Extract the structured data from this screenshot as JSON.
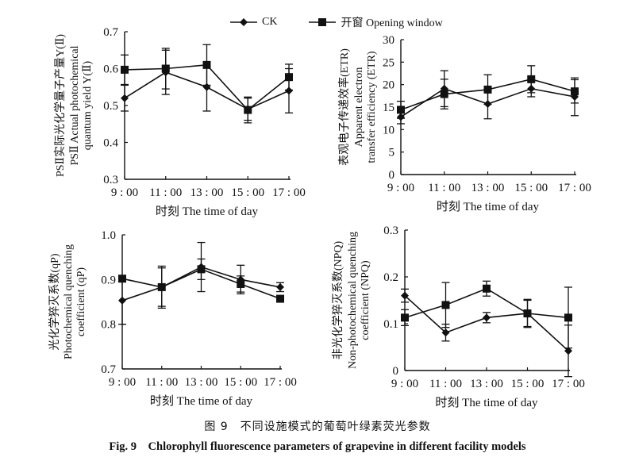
{
  "legend": {
    "ck_label": "CK",
    "open_label": "开窗 Opening window"
  },
  "caption": {
    "cn": "图 9　不同设施模式的葡萄叶绿素荧光参数",
    "en": "Fig. 9　Chlorophyll fluorescence parameters of grapevine in different facility models"
  },
  "chart_data": [
    {
      "id": "yII",
      "type": "line",
      "title": "",
      "xlabel": "时刻  The time of day",
      "ylabel_lines": [
        "PSⅡ实际光化学量子产量Y(Ⅱ)",
        "PSⅡ Actual photochemical",
        "quantum yield Y(Ⅱ)"
      ],
      "categories": [
        "9:00",
        "11:00",
        "13:00",
        "15:00",
        "17:00"
      ],
      "ylim": [
        0.3,
        0.7
      ],
      "yticks": [
        0.3,
        0.4,
        0.5,
        0.6,
        0.7
      ],
      "ytick_labels": [
        "0.3",
        "0.4",
        "0.5",
        "0.6",
        "0.7"
      ],
      "grid": false,
      "series": [
        {
          "name": "CK",
          "marker": "diamond",
          "values": [
            0.52,
            0.59,
            0.55,
            0.49,
            0.54
          ],
          "errors": [
            0.035,
            0.06,
            0.065,
            0.03,
            0.06
          ]
        },
        {
          "name": "开窗 Opening window",
          "marker": "square",
          "values": [
            0.597,
            0.6,
            0.61,
            0.488,
            0.577
          ],
          "errors": [
            0.04,
            0.055,
            0.055,
            0.035,
            0.035
          ]
        }
      ]
    },
    {
      "id": "etr",
      "type": "line",
      "title": "",
      "xlabel": "时刻  The time of day",
      "ylabel_lines": [
        "表观电子传递效率(ETR)",
        "Apparent electron",
        "transfer efficiency (ETR)"
      ],
      "categories": [
        "9:00",
        "11:00",
        "13:00",
        "15:00",
        "17:00"
      ],
      "ylim": [
        0,
        30
      ],
      "yticks": [
        0,
        5,
        10,
        15,
        20,
        25,
        30
      ],
      "ytick_labels": [
        "0",
        "5",
        "10",
        "15",
        "20",
        "25",
        "30"
      ],
      "grid": false,
      "series": [
        {
          "name": "CK",
          "marker": "diamond",
          "values": [
            12.8,
            19.1,
            15.7,
            19.1,
            17.3
          ],
          "errors": [
            1.5,
            4.0,
            3.3,
            1.8,
            4.2
          ]
        },
        {
          "name": "开窗 Opening window",
          "marker": "square",
          "values": [
            14.4,
            17.9,
            18.9,
            21.2,
            18.5
          ],
          "errors": [
            1.9,
            3.3,
            3.3,
            3.0,
            2.6
          ]
        }
      ]
    },
    {
      "id": "qp",
      "type": "line",
      "title": "",
      "xlabel": "时刻  The time of day",
      "ylabel_lines": [
        "光化学猝灭系数(qP)",
        "Photochemical quenching",
        "coefficient (qP)"
      ],
      "categories": [
        "9:00",
        "11:00",
        "13:00",
        "15:00",
        "17:00"
      ],
      "ylim": [
        0.7,
        1.0
      ],
      "yticks": [
        0.7,
        0.8,
        0.9,
        1.0
      ],
      "ytick_labels": [
        "0.7",
        "0.8",
        "0.9",
        "1.0"
      ],
      "grid": false,
      "series": [
        {
          "name": "CK",
          "marker": "diamond",
          "values": [
            0.853,
            0.883,
            0.928,
            0.9,
            0.883
          ],
          "errors": [
            0.053,
            0.043,
            0.055,
            0.032,
            0.01
          ]
        },
        {
          "name": "开窗 Opening window",
          "marker": "square",
          "values": [
            0.902,
            0.883,
            0.923,
            0.89,
            0.857
          ],
          "errors": [
            0.0,
            0.047,
            0.023,
            0.018,
            0.0
          ]
        }
      ]
    },
    {
      "id": "npq",
      "type": "line",
      "title": "",
      "xlabel": "时刻  The time of day",
      "ylabel_lines": [
        "非光化学猝灭系数(NPQ)",
        "Non-photochemical quenching",
        "coefficient (NPQ)"
      ],
      "categories": [
        "9:00",
        "11:00",
        "13:00",
        "15:00",
        "17:00"
      ],
      "ylim": [
        0,
        0.3
      ],
      "yticks": [
        0,
        0.1,
        0.2,
        0.3
      ],
      "ytick_labels": [
        "0",
        "0.1",
        "0.2",
        "0.3"
      ],
      "grid": false,
      "series": [
        {
          "name": "CK",
          "marker": "diamond",
          "values": [
            0.16,
            0.081,
            0.113,
            0.122,
            0.042
          ],
          "errors": [
            0.014,
            0.018,
            0.011,
            0.028,
            0.055
          ]
        },
        {
          "name": "开窗 Opening window",
          "marker": "square",
          "values": [
            0.113,
            0.14,
            0.175,
            0.122,
            0.113
          ],
          "errors": [
            0.017,
            0.048,
            0.016,
            0.03,
            0.065
          ]
        }
      ]
    }
  ]
}
